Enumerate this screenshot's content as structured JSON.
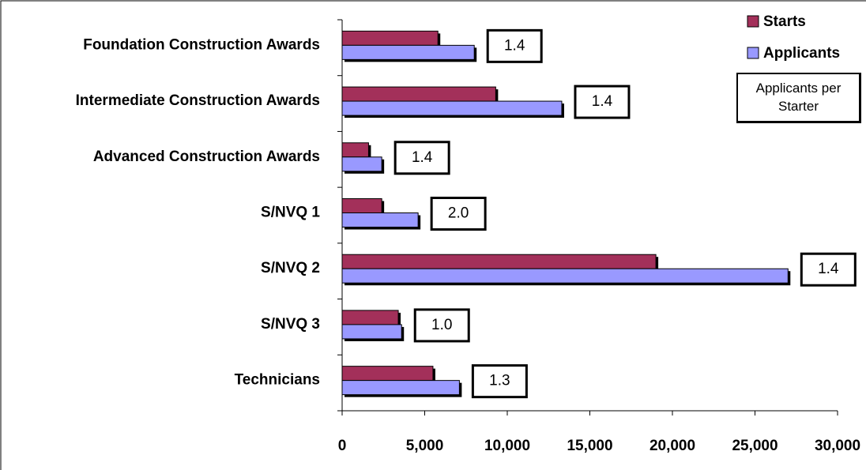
{
  "chart_data": {
    "type": "hbar",
    "categories": [
      "Foundation Construction Awards",
      "Intermediate Construction Awards",
      "Advanced Construction Awards",
      "S/NVQ 1",
      "S/NVQ 2",
      "S/NVQ 3",
      "Technicians"
    ],
    "series": [
      {
        "name": "Starts",
        "color": "#a3305a",
        "values": [
          5800,
          9300,
          1600,
          2400,
          19000,
          3400,
          5500
        ]
      },
      {
        "name": "Applicants",
        "color": "#9999ff",
        "values": [
          8000,
          13300,
          2400,
          4600,
          27000,
          3600,
          7100
        ]
      }
    ],
    "ratio": {
      "name": "Applicants per Starter",
      "values": [
        1.4,
        1.4,
        1.4,
        2.0,
        1.4,
        1.0,
        1.3
      ],
      "value_labels": [
        "1.4",
        "1.4",
        "1.4",
        "2.0",
        "1.4",
        "1.0",
        "1.3"
      ]
    },
    "xlim": [
      0,
      30000
    ],
    "xticks": [
      0,
      {
        "value": 5000,
        "label": "5,000"
      },
      {
        "value": 10000,
        "label": "10,000"
      },
      {
        "value": 15000,
        "label": "15,000"
      },
      {
        "value": 20000,
        "label": "20,000"
      },
      {
        "value": 25000,
        "label": "25,000"
      },
      {
        "value": 30000,
        "label": "30,000"
      }
    ],
    "grid": false,
    "legend": "top-right"
  }
}
